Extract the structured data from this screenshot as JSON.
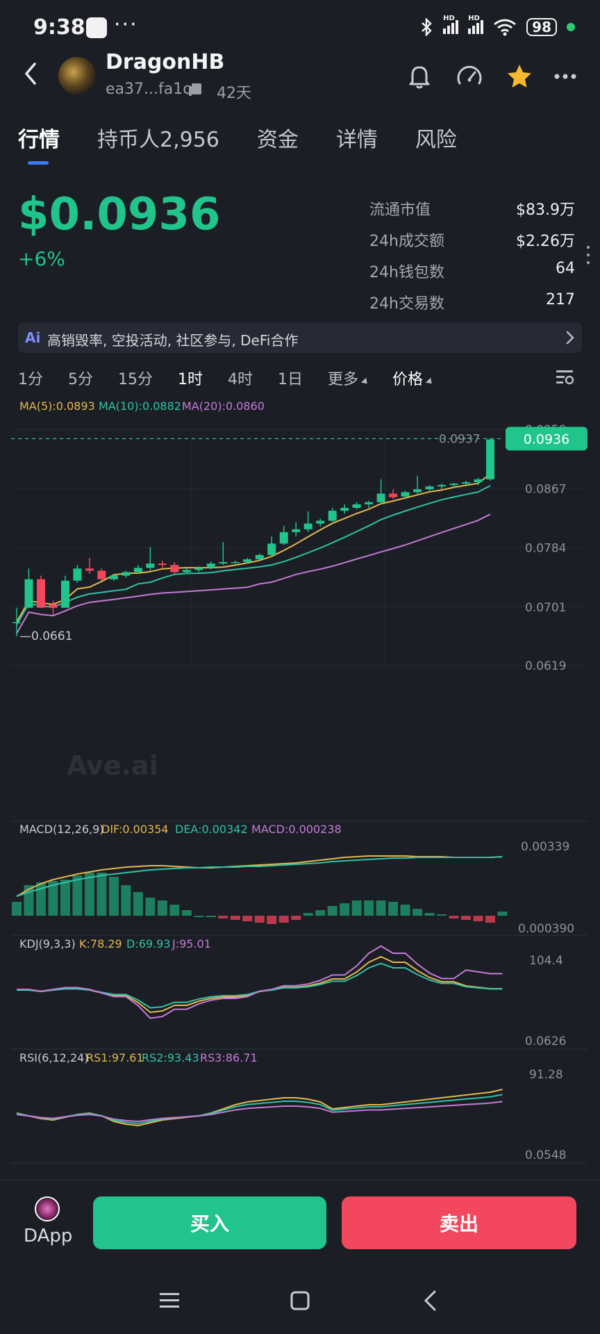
{
  "status_bar": {
    "time": "9:38",
    "dots": "···",
    "signal_label_1": "HD",
    "signal_label_2": "HD",
    "battery": "98"
  },
  "header": {
    "token_name": "DragonHB",
    "address": "ea37...fa1c",
    "age": "42天"
  },
  "tabs": [
    {
      "label": "行情",
      "active": true
    },
    {
      "label": "持币人2,956",
      "active": false
    },
    {
      "label": "资金",
      "active": false
    },
    {
      "label": "详情",
      "active": false
    },
    {
      "label": "风险",
      "active": false
    }
  ],
  "price": {
    "value": "$0.0936",
    "change": "+6%"
  },
  "stats": [
    {
      "label": "流通市值",
      "value": "$83.9万"
    },
    {
      "label": "24h成交额",
      "value": "$2.26万"
    },
    {
      "label": "24h钱包数",
      "value": "64"
    },
    {
      "label": "24h交易数",
      "value": "217"
    }
  ],
  "ai_banner": {
    "badge": "Ai",
    "text": "高销毁率, 空投活动, 社区参与, DeFi合作"
  },
  "intervals": [
    {
      "label": "1分",
      "active": false
    },
    {
      "label": "5分",
      "active": false
    },
    {
      "label": "15分",
      "active": false
    },
    {
      "label": "1时",
      "active": true
    },
    {
      "label": "4时",
      "active": false
    },
    {
      "label": "1日",
      "active": false
    },
    {
      "label": "更多",
      "active": false,
      "dropdown": true
    },
    {
      "label": "价格",
      "active": true,
      "dropdown": true
    }
  ],
  "chart_data": {
    "type": "candlestick",
    "watermark": "Ave.ai",
    "ma_legend": {
      "ma5": "MA(5):0.0893",
      "ma10": "MA(10):0.0882",
      "ma20": "MA(20):0.0860"
    },
    "y_ticks": [
      "0.0950",
      "0.0867",
      "0.0784",
      "0.0701",
      "0.0619"
    ],
    "ylim": [
      0.0619,
      0.095
    ],
    "last_price_tag": "0.0936",
    "high_label": "0.0937",
    "low_label": "0.0661",
    "candles": [
      {
        "o": 0.068,
        "h": 0.07,
        "c": 0.068,
        "l": 0.066
      },
      {
        "o": 0.07,
        "h": 0.0755,
        "c": 0.074,
        "l": 0.07
      },
      {
        "o": 0.074,
        "h": 0.0745,
        "c": 0.07,
        "l": 0.07
      },
      {
        "o": 0.0705,
        "h": 0.071,
        "c": 0.07,
        "l": 0.069
      },
      {
        "o": 0.07,
        "h": 0.0745,
        "c": 0.0738,
        "l": 0.07
      },
      {
        "o": 0.0738,
        "h": 0.076,
        "c": 0.0755,
        "l": 0.0735
      },
      {
        "o": 0.0755,
        "h": 0.077,
        "c": 0.0752,
        "l": 0.0748
      },
      {
        "o": 0.0752,
        "h": 0.0755,
        "c": 0.074,
        "l": 0.0738
      },
      {
        "o": 0.074,
        "h": 0.0748,
        "c": 0.0745,
        "l": 0.0738
      },
      {
        "o": 0.0745,
        "h": 0.0752,
        "c": 0.075,
        "l": 0.0742
      },
      {
        "o": 0.075,
        "h": 0.076,
        "c": 0.0756,
        "l": 0.0748
      },
      {
        "o": 0.0756,
        "h": 0.0785,
        "c": 0.0762,
        "l": 0.0752
      },
      {
        "o": 0.0762,
        "h": 0.0766,
        "c": 0.076,
        "l": 0.0756
      },
      {
        "o": 0.076,
        "h": 0.0764,
        "c": 0.075,
        "l": 0.0748
      },
      {
        "o": 0.075,
        "h": 0.0756,
        "c": 0.0753,
        "l": 0.0748
      },
      {
        "o": 0.0753,
        "h": 0.0758,
        "c": 0.0756,
        "l": 0.075
      },
      {
        "o": 0.0756,
        "h": 0.0765,
        "c": 0.0762,
        "l": 0.0754
      },
      {
        "o": 0.0762,
        "h": 0.0792,
        "c": 0.0764,
        "l": 0.076
      },
      {
        "o": 0.0764,
        "h": 0.0766,
        "c": 0.0764,
        "l": 0.0762
      },
      {
        "o": 0.0764,
        "h": 0.077,
        "c": 0.0768,
        "l": 0.0762
      },
      {
        "o": 0.0768,
        "h": 0.0776,
        "c": 0.0774,
        "l": 0.0766
      },
      {
        "o": 0.0774,
        "h": 0.08,
        "c": 0.079,
        "l": 0.0772
      },
      {
        "o": 0.079,
        "h": 0.0815,
        "c": 0.0806,
        "l": 0.0788
      },
      {
        "o": 0.0806,
        "h": 0.082,
        "c": 0.081,
        "l": 0.08
      },
      {
        "o": 0.081,
        "h": 0.0835,
        "c": 0.0818,
        "l": 0.0806
      },
      {
        "o": 0.0818,
        "h": 0.0825,
        "c": 0.0822,
        "l": 0.0814
      },
      {
        "o": 0.0822,
        "h": 0.084,
        "c": 0.0836,
        "l": 0.082
      },
      {
        "o": 0.0836,
        "h": 0.0845,
        "c": 0.084,
        "l": 0.0832
      },
      {
        "o": 0.084,
        "h": 0.0848,
        "c": 0.0845,
        "l": 0.0838
      },
      {
        "o": 0.0845,
        "h": 0.085,
        "c": 0.0848,
        "l": 0.084
      },
      {
        "o": 0.0848,
        "h": 0.088,
        "c": 0.086,
        "l": 0.0846
      },
      {
        "o": 0.086,
        "h": 0.0866,
        "c": 0.0855,
        "l": 0.0852
      },
      {
        "o": 0.0856,
        "h": 0.0864,
        "c": 0.0862,
        "l": 0.0852
      },
      {
        "o": 0.0862,
        "h": 0.0885,
        "c": 0.0866,
        "l": 0.0858
      },
      {
        "o": 0.0866,
        "h": 0.0872,
        "c": 0.087,
        "l": 0.0864
      },
      {
        "o": 0.087,
        "h": 0.0874,
        "c": 0.0872,
        "l": 0.0866
      },
      {
        "o": 0.0872,
        "h": 0.0875,
        "c": 0.0874,
        "l": 0.0868
      },
      {
        "o": 0.0874,
        "h": 0.0878,
        "c": 0.0876,
        "l": 0.087
      },
      {
        "o": 0.0876,
        "h": 0.0882,
        "c": 0.088,
        "l": 0.0872
      },
      {
        "o": 0.088,
        "h": 0.0937,
        "c": 0.0936,
        "l": 0.0878
      }
    ],
    "macd": {
      "legend_title": "MACD(12,26,9)",
      "dif": "DIF:0.00354",
      "dea": "DEA:0.00342",
      "macd": "MACD:0.000238",
      "y_ticks": [
        "0.00339",
        "0.000390"
      ]
    },
    "kdj": {
      "legend_title": "KDJ(9,3,3)",
      "k": "K:78.29",
      "d": "D:69.93",
      "j": "J:95.01",
      "y_ticks": [
        "104.4",
        "0.0626"
      ]
    },
    "rsi": {
      "legend_title": "RSI(6,12,24)",
      "rs1": "RS1:97.61",
      "rs2": "RS2:93.43",
      "rs3": "RS3:86.71",
      "y_ticks": [
        "91.28",
        "0.0548"
      ]
    }
  },
  "bottom": {
    "dapp_label": "DApp",
    "buy_label": "买入",
    "sell_label": "卖出"
  },
  "colors": {
    "up": "#21c48b",
    "down": "#f2475d",
    "ma5": "#e5b94a",
    "ma10": "#2ec4a8",
    "ma20": "#c67ad8",
    "accent": "#3d7bf6"
  }
}
